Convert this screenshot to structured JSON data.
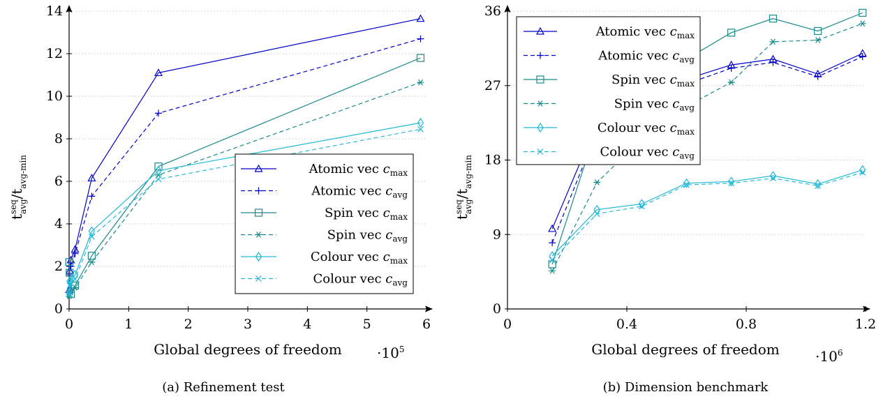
{
  "chart_data": [
    {
      "type": "line",
      "caption": "(a) Refinement test",
      "xlabel": "Global degrees of freedom",
      "x_multiplier": "·10",
      "x_multiplier_exp": "5",
      "ylabel_main": "t",
      "ylabel_sup": "seq",
      "ylabel_sub": "avg",
      "ylabel_den_main": "/t",
      "ylabel_den_sub": "avg-min",
      "xlim": [
        0,
        6
      ],
      "ylim": [
        0,
        14
      ],
      "xticks": [
        0,
        1,
        2,
        3,
        4,
        5,
        6
      ],
      "yticks": [
        0,
        2,
        4,
        6,
        8,
        10,
        12,
        14
      ],
      "grid": "horizontal-dotted",
      "legend_position": "lower-right",
      "series": [
        {
          "name": "Atomic vec",
          "c_sub": "max",
          "color": "#0000cc",
          "dash": "solid",
          "marker": "triangle",
          "x": [
            0.003,
            0.01,
            0.03,
            0.1,
            0.38,
            1.5,
            5.9
          ],
          "y": [
            0.9,
            1.8,
            2.3,
            2.8,
            6.15,
            11.1,
            13.65
          ]
        },
        {
          "name": "Atomic vec",
          "c_sub": "avg",
          "color": "#0000cc",
          "dash": "dashed",
          "marker": "plus",
          "x": [
            0.003,
            0.01,
            0.03,
            0.1,
            0.38,
            1.5,
            5.9
          ],
          "y": [
            0.8,
            1.6,
            2.0,
            2.6,
            5.3,
            9.2,
            12.7
          ]
        },
        {
          "name": "Spin vec",
          "c_sub": "max",
          "color": "#1a8a8a",
          "dash": "solid",
          "marker": "square",
          "x": [
            0.003,
            0.01,
            0.03,
            0.1,
            0.38,
            1.5,
            5.9
          ],
          "y": [
            2.2,
            1.7,
            0.7,
            1.1,
            2.5,
            6.7,
            11.8
          ]
        },
        {
          "name": "Spin vec",
          "c_sub": "avg",
          "color": "#1a8a8a",
          "dash": "dashed",
          "marker": "asterisk",
          "x": [
            0.003,
            0.01,
            0.03,
            0.1,
            0.38,
            1.5,
            5.9
          ],
          "y": [
            0.6,
            0.7,
            0.8,
            1.0,
            2.2,
            6.3,
            10.65
          ]
        },
        {
          "name": "Colour vec",
          "c_sub": "max",
          "color": "#22b8d8",
          "dash": "solid",
          "marker": "diamond",
          "x": [
            0.003,
            0.01,
            0.03,
            0.1,
            0.38,
            1.5,
            5.9
          ],
          "y": [
            0.8,
            1.3,
            1.3,
            1.6,
            3.65,
            6.5,
            8.75
          ]
        },
        {
          "name": "Colour vec",
          "c_sub": "avg",
          "color": "#22b8d8",
          "dash": "dashed",
          "marker": "cross",
          "x": [
            0.003,
            0.01,
            0.03,
            0.1,
            0.38,
            1.5,
            5.9
          ],
          "y": [
            0.7,
            1.1,
            1.2,
            1.4,
            3.4,
            6.1,
            8.45
          ]
        }
      ]
    },
    {
      "type": "line",
      "caption": "(b) Dimension benchmark",
      "xlabel": "Global degrees of freedom",
      "x_multiplier": "·10",
      "x_multiplier_exp": "6",
      "ylabel_main": "t",
      "ylabel_sup": "seq",
      "ylabel_sub": "avg",
      "ylabel_den_main": "/t",
      "ylabel_den_sub": "avg-min",
      "xlim": [
        0,
        1.2
      ],
      "ylim": [
        0,
        36
      ],
      "xticks": [
        0,
        0.4,
        0.8,
        1.2
      ],
      "yticks": [
        0,
        9,
        18,
        27,
        36
      ],
      "grid": "horizontal-dotted",
      "legend_position": "top-left",
      "series": [
        {
          "name": "Atomic vec",
          "c_sub": "max",
          "color": "#0000cc",
          "dash": "solid",
          "marker": "triangle",
          "x": [
            0.15,
            0.3,
            0.45,
            0.6,
            0.75,
            0.89,
            1.04,
            1.19
          ],
          "y": [
            9.7,
            22.5,
            26.0,
            27.8,
            29.5,
            30.2,
            28.4,
            30.9
          ]
        },
        {
          "name": "Atomic vec",
          "c_sub": "avg",
          "color": "#0000cc",
          "dash": "dashed",
          "marker": "plus",
          "x": [
            0.15,
            0.3,
            0.45,
            0.6,
            0.75,
            0.89,
            1.04,
            1.19
          ],
          "y": [
            8.0,
            21.5,
            25.3,
            27.2,
            29.1,
            29.8,
            28.1,
            30.5
          ]
        },
        {
          "name": "Spin vec",
          "c_sub": "max",
          "color": "#1a8a8a",
          "dash": "solid",
          "marker": "square",
          "x": [
            0.15,
            0.3,
            0.45,
            0.6,
            0.75,
            0.89,
            1.04,
            1.19
          ],
          "y": [
            5.4,
            22.0,
            27.5,
            30.2,
            33.4,
            35.1,
            33.6,
            35.8
          ]
        },
        {
          "name": "Spin vec",
          "c_sub": "avg",
          "color": "#1a8a8a",
          "dash": "dashed",
          "marker": "asterisk",
          "x": [
            0.15,
            0.3,
            0.45,
            0.6,
            0.75,
            0.89,
            1.04,
            1.19
          ],
          "y": [
            4.6,
            15.3,
            20.5,
            24.5,
            27.4,
            32.3,
            32.5,
            34.5
          ]
        },
        {
          "name": "Colour vec",
          "c_sub": "max",
          "color": "#22b8d8",
          "dash": "solid",
          "marker": "diamond",
          "x": [
            0.15,
            0.3,
            0.45,
            0.6,
            0.75,
            0.89,
            1.04,
            1.19
          ],
          "y": [
            6.4,
            12.0,
            12.7,
            15.2,
            15.4,
            16.1,
            15.1,
            16.8
          ]
        },
        {
          "name": "Colour vec",
          "c_sub": "avg",
          "color": "#22b8d8",
          "dash": "dashed",
          "marker": "cross",
          "x": [
            0.15,
            0.3,
            0.45,
            0.6,
            0.75,
            0.89,
            1.04,
            1.19
          ],
          "y": [
            5.9,
            11.5,
            12.4,
            15.0,
            15.2,
            15.8,
            14.9,
            16.5
          ]
        }
      ]
    }
  ]
}
